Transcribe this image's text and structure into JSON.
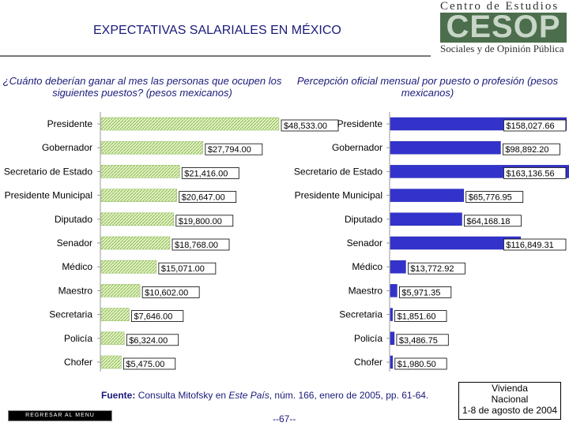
{
  "header": {
    "title": "EXPECTATIVAS SALARIALES EN MÉXICO",
    "logo_top": "Centro de Estudios",
    "logo_mark": "CESOP",
    "logo_bottom": "Sociales y de Opinión Pública"
  },
  "chart_data": [
    {
      "type": "bar",
      "orientation": "horizontal",
      "title": "¿Cuánto deberían ganar al mes las personas que ocupen los siguientes puestos? (pesos mexicanos)",
      "bar_color": "#d9ecb0",
      "categories": [
        "Presidente",
        "Gobernador",
        "Secretario de Estado",
        "Presidente Municipal",
        "Diputado",
        "Senador",
        "Médico",
        "Maestro",
        "Secretaria",
        "Policía",
        "Chofer"
      ],
      "values": [
        48533.0,
        27794.0,
        21416.0,
        20647.0,
        19800.0,
        18768.0,
        15071.0,
        10602.0,
        7646.0,
        6324.0,
        5475.0
      ],
      "labels": [
        "$48,533.00",
        "$27,794.00",
        "$21,416.00",
        "$20,647.00",
        "$19,800.00",
        "$18,768.00",
        "$15,071.00",
        "$10,602.00",
        "$7,646.00",
        "$6,324.00",
        "$5,475.00"
      ]
    },
    {
      "type": "bar",
      "orientation": "horizontal",
      "title": "Percepción oficial mensual por puesto o profesión (pesos mexicanos)",
      "bar_color": "#3333cc",
      "categories": [
        "Presidente",
        "Gobernador",
        "Secretario de Estado",
        "Presidente Municipal",
        "Diputado",
        "Senador",
        "Médico",
        "Maestro",
        "Secretaria",
        "Policía",
        "Chofer"
      ],
      "values": [
        158027.66,
        98892.2,
        163136.56,
        65776.95,
        64168.18,
        116849.31,
        13772.92,
        5971.35,
        1851.6,
        3486.75,
        1980.5
      ],
      "labels": [
        "$158,027.66",
        "$98,892.20",
        "$163,136.56",
        "$65,776.95",
        "$64,168.18",
        "$116,849.31",
        "$13,772.92",
        "$5,971.35",
        "$1,851.60",
        "$3,486.75",
        "$1,980.50"
      ]
    }
  ],
  "footer": {
    "source_label": "Fuente:",
    "source_text_1": "Consulta Mitofsky en ",
    "source_italic": "Este País",
    "source_text_2": ", núm. 166, enero de 2005, pp. 61-64.",
    "back_button": "REGRESAR AL MENU PRINCIPAL",
    "page_number": "--67--",
    "box_line_1": "Vivienda",
    "box_line_2": "Nacional",
    "box_line_3": "1-8 de agosto de 2004"
  }
}
